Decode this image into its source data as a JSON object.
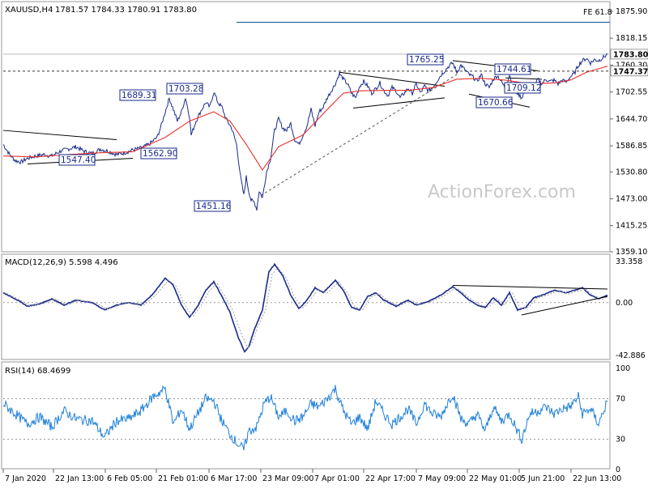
{
  "chart_data": {
    "type": "line",
    "header": {
      "symbol": "XAUUSD,H4",
      "ohlc": "1781.57 1784.33 1780.91 1783.80"
    },
    "watermark": "ActionForex.com",
    "fe_label": "FE 61.8",
    "price_panel": {
      "ylim": [
        1359.1,
        1875.9
      ],
      "yticks": [
        "1875.90",
        "1818.15",
        "1760.30",
        "1702.55",
        "1644.70",
        "1586.85",
        "1530.80",
        "1473.00",
        "1415.25",
        "1359.10"
      ],
      "current_price": "1783.80",
      "level_price": "1747.37",
      "fe_level": 1852.5,
      "swing_labels": [
        {
          "text": "1547.40",
          "x": 1547.4
        },
        {
          "text": "1689.31",
          "x": 1689.31
        },
        {
          "text": "1703.28",
          "x": 1703.28
        },
        {
          "text": "1562.90",
          "x": 1562.9
        },
        {
          "text": "1451.16",
          "x": 1451.16
        },
        {
          "text": "1765.25",
          "x": 1765.25
        },
        {
          "text": "1744.61",
          "x": 1744.61
        },
        {
          "text": "1670.66",
          "x": 1670.66
        },
        {
          "text": "1709.12",
          "x": 1709.12
        }
      ],
      "ma_color": "#e8302a",
      "price_color": "#1a2a8a"
    },
    "macd_panel": {
      "title": "MACD(12,26,9) 5.598 4.496",
      "ylim": [
        -42.886,
        33.358
      ],
      "yticks": [
        "33.358",
        "0.00",
        "-42.886"
      ]
    },
    "rsi_panel": {
      "title": "RSI(14) 68.4699",
      "ylim": [
        0,
        100
      ],
      "yticks": [
        "100",
        "70",
        "30",
        "0"
      ],
      "levels": [
        70,
        30
      ]
    },
    "x_labels": [
      "7 Jan 2020",
      "22 Jan 13:00",
      "6 Feb 05:00",
      "21 Feb 01:00",
      "6 Mar 17:00",
      "23 Mar 09:00",
      "7 Apr 01:00",
      "22 Apr 17:00",
      "7 May 09:00",
      "22 May 01:00",
      "5 Jun 21:00",
      "22 Jun 13:00"
    ],
    "price_series_anchors": [
      [
        0,
        1590
      ],
      [
        8,
        1568
      ],
      [
        15,
        1555
      ],
      [
        22,
        1552
      ],
      [
        30,
        1560
      ],
      [
        40,
        1565
      ],
      [
        50,
        1568
      ],
      [
        60,
        1565
      ],
      [
        70,
        1575
      ],
      [
        80,
        1580
      ],
      [
        90,
        1585
      ],
      [
        100,
        1575
      ],
      [
        110,
        1570
      ],
      [
        120,
        1580
      ],
      [
        130,
        1575
      ],
      [
        140,
        1568
      ],
      [
        150,
        1572
      ],
      [
        160,
        1578
      ],
      [
        170,
        1582
      ],
      [
        180,
        1590
      ],
      [
        190,
        1605
      ],
      [
        195,
        1630
      ],
      [
        200,
        1660
      ],
      [
        205,
        1689
      ],
      [
        210,
        1665
      ],
      [
        215,
        1640
      ],
      [
        220,
        1660
      ],
      [
        225,
        1690
      ],
      [
        230,
        1650
      ],
      [
        232,
        1610
      ],
      [
        238,
        1640
      ],
      [
        245,
        1665
      ],
      [
        250,
        1680
      ],
      [
        255,
        1670
      ],
      [
        260,
        1703
      ],
      [
        265,
        1680
      ],
      [
        270,
        1670
      ],
      [
        275,
        1645
      ],
      [
        282,
        1625
      ],
      [
        288,
        1590
      ],
      [
        293,
        1520
      ],
      [
        297,
        1480
      ],
      [
        300,
        1520
      ],
      [
        303,
        1490
      ],
      [
        306,
        1470
      ],
      [
        310,
        1465
      ],
      [
        313,
        1451
      ],
      [
        316,
        1490
      ],
      [
        320,
        1475
      ],
      [
        325,
        1530
      ],
      [
        330,
        1560
      ],
      [
        335,
        1620
      ],
      [
        340,
        1645
      ],
      [
        345,
        1625
      ],
      [
        350,
        1620
      ],
      [
        355,
        1635
      ],
      [
        360,
        1600
      ],
      [
        365,
        1590
      ],
      [
        370,
        1610
      ],
      [
        375,
        1630
      ],
      [
        380,
        1665
      ],
      [
        385,
        1630
      ],
      [
        390,
        1660
      ],
      [
        395,
        1670
      ],
      [
        400,
        1690
      ],
      [
        405,
        1705
      ],
      [
        410,
        1720
      ],
      [
        415,
        1742
      ],
      [
        420,
        1730
      ],
      [
        425,
        1720
      ],
      [
        430,
        1700
      ],
      [
        435,
        1690
      ],
      [
        440,
        1715
      ],
      [
        445,
        1725
      ],
      [
        450,
        1715
      ],
      [
        455,
        1700
      ],
      [
        460,
        1710
      ],
      [
        465,
        1722
      ],
      [
        470,
        1705
      ],
      [
        475,
        1695
      ],
      [
        480,
        1712
      ],
      [
        485,
        1705
      ],
      [
        490,
        1690
      ],
      [
        495,
        1700
      ],
      [
        500,
        1710
      ],
      [
        505,
        1700
      ],
      [
        510,
        1720
      ],
      [
        515,
        1700
      ],
      [
        520,
        1715
      ],
      [
        525,
        1705
      ],
      [
        530,
        1712
      ],
      [
        535,
        1725
      ],
      [
        540,
        1738
      ],
      [
        545,
        1748
      ],
      [
        550,
        1758
      ],
      [
        555,
        1765
      ],
      [
        560,
        1745
      ],
      [
        565,
        1760
      ],
      [
        570,
        1750
      ],
      [
        575,
        1740
      ],
      [
        580,
        1735
      ],
      [
        585,
        1725
      ],
      [
        590,
        1740
      ],
      [
        595,
        1720
      ],
      [
        600,
        1712
      ],
      [
        605,
        1730
      ],
      [
        610,
        1738
      ],
      [
        615,
        1725
      ],
      [
        620,
        1710
      ],
      [
        625,
        1740
      ],
      [
        630,
        1710
      ],
      [
        635,
        1700
      ],
      [
        640,
        1690
      ],
      [
        645,
        1710
      ],
      [
        650,
        1720
      ],
      [
        655,
        1710
      ],
      [
        660,
        1730
      ],
      [
        665,
        1720
      ],
      [
        670,
        1730
      ],
      [
        675,
        1725
      ],
      [
        680,
        1728
      ],
      [
        685,
        1720
      ],
      [
        690,
        1728
      ],
      [
        695,
        1724
      ],
      [
        700,
        1735
      ],
      [
        705,
        1742
      ],
      [
        710,
        1760
      ],
      [
        715,
        1770
      ],
      [
        720,
        1775
      ],
      [
        725,
        1765
      ],
      [
        730,
        1772
      ],
      [
        735,
        1770
      ],
      [
        740,
        1776
      ],
      [
        746,
        1784
      ]
    ],
    "ma_series_anchors": [
      [
        0,
        1565
      ],
      [
        40,
        1563
      ],
      [
        80,
        1568
      ],
      [
        120,
        1572
      ],
      [
        160,
        1574
      ],
      [
        200,
        1605
      ],
      [
        230,
        1640
      ],
      [
        260,
        1660
      ],
      [
        280,
        1640
      ],
      [
        300,
        1590
      ],
      [
        320,
        1535
      ],
      [
        340,
        1585
      ],
      [
        370,
        1610
      ],
      [
        400,
        1665
      ],
      [
        420,
        1700
      ],
      [
        440,
        1705
      ],
      [
        470,
        1706
      ],
      [
        500,
        1706
      ],
      [
        530,
        1712
      ],
      [
        560,
        1730
      ],
      [
        590,
        1732
      ],
      [
        620,
        1728
      ],
      [
        650,
        1720
      ],
      [
        680,
        1722
      ],
      [
        700,
        1728
      ],
      [
        720,
        1745
      ],
      [
        746,
        1758
      ]
    ],
    "macd_series_anchors": [
      [
        0,
        8
      ],
      [
        15,
        3
      ],
      [
        30,
        -3
      ],
      [
        45,
        -1
      ],
      [
        60,
        3
      ],
      [
        75,
        -2
      ],
      [
        90,
        2
      ],
      [
        110,
        0
      ],
      [
        125,
        -6
      ],
      [
        140,
        -2
      ],
      [
        155,
        0
      ],
      [
        170,
        -2
      ],
      [
        185,
        7
      ],
      [
        200,
        20
      ],
      [
        210,
        14
      ],
      [
        220,
        -2
      ],
      [
        230,
        -12
      ],
      [
        240,
        -3
      ],
      [
        250,
        10
      ],
      [
        260,
        17
      ],
      [
        270,
        5
      ],
      [
        280,
        -8
      ],
      [
        290,
        -28
      ],
      [
        298,
        -40
      ],
      [
        303,
        -36
      ],
      [
        310,
        -22
      ],
      [
        320,
        -6
      ],
      [
        328,
        25
      ],
      [
        335,
        31
      ],
      [
        345,
        22
      ],
      [
        355,
        6
      ],
      [
        365,
        -5
      ],
      [
        375,
        2
      ],
      [
        385,
        12
      ],
      [
        395,
        8
      ],
      [
        410,
        18
      ],
      [
        420,
        10
      ],
      [
        430,
        -4
      ],
      [
        440,
        -6
      ],
      [
        450,
        5
      ],
      [
        460,
        8
      ],
      [
        470,
        2
      ],
      [
        485,
        -3
      ],
      [
        500,
        2
      ],
      [
        510,
        -2
      ],
      [
        525,
        1
      ],
      [
        540,
        6
      ],
      [
        555,
        13
      ],
      [
        565,
        8
      ],
      [
        575,
        2
      ],
      [
        585,
        -2
      ],
      [
        595,
        -4
      ],
      [
        605,
        4
      ],
      [
        615,
        -2
      ],
      [
        625,
        8
      ],
      [
        635,
        -6
      ],
      [
        645,
        -4
      ],
      [
        655,
        4
      ],
      [
        665,
        6
      ],
      [
        680,
        10
      ],
      [
        695,
        8
      ],
      [
        705,
        10
      ],
      [
        715,
        12
      ],
      [
        725,
        6
      ],
      [
        735,
        3
      ],
      [
        746,
        6
      ]
    ],
    "rsi_series_anchors": [
      [
        0,
        65
      ],
      [
        15,
        55
      ],
      [
        30,
        45
      ],
      [
        45,
        52
      ],
      [
        60,
        42
      ],
      [
        75,
        58
      ],
      [
        90,
        50
      ],
      [
        110,
        48
      ],
      [
        125,
        32
      ],
      [
        140,
        48
      ],
      [
        155,
        50
      ],
      [
        170,
        58
      ],
      [
        185,
        72
      ],
      [
        200,
        80
      ],
      [
        210,
        45
      ],
      [
        220,
        60
      ],
      [
        230,
        40
      ],
      [
        240,
        55
      ],
      [
        250,
        70
      ],
      [
        260,
        68
      ],
      [
        270,
        48
      ],
      [
        280,
        35
      ],
      [
        290,
        25
      ],
      [
        297,
        20
      ],
      [
        303,
        38
      ],
      [
        313,
        42
      ],
      [
        322,
        65
      ],
      [
        330,
        72
      ],
      [
        340,
        52
      ],
      [
        350,
        58
      ],
      [
        360,
        48
      ],
      [
        370,
        52
      ],
      [
        380,
        65
      ],
      [
        390,
        62
      ],
      [
        400,
        70
      ],
      [
        410,
        80
      ],
      [
        420,
        58
      ],
      [
        430,
        45
      ],
      [
        440,
        52
      ],
      [
        450,
        40
      ],
      [
        460,
        68
      ],
      [
        470,
        55
      ],
      [
        480,
        45
      ],
      [
        490,
        52
      ],
      [
        500,
        60
      ],
      [
        510,
        45
      ],
      [
        520,
        65
      ],
      [
        530,
        55
      ],
      [
        540,
        52
      ],
      [
        550,
        68
      ],
      [
        555,
        75
      ],
      [
        565,
        50
      ],
      [
        575,
        45
      ],
      [
        585,
        55
      ],
      [
        595,
        38
      ],
      [
        605,
        62
      ],
      [
        615,
        48
      ],
      [
        625,
        55
      ],
      [
        635,
        38
      ],
      [
        640,
        30
      ],
      [
        650,
        55
      ],
      [
        660,
        58
      ],
      [
        670,
        62
      ],
      [
        680,
        55
      ],
      [
        690,
        60
      ],
      [
        700,
        62
      ],
      [
        710,
        72
      ],
      [
        715,
        55
      ],
      [
        725,
        60
      ],
      [
        735,
        45
      ],
      [
        746,
        68
      ]
    ]
  }
}
